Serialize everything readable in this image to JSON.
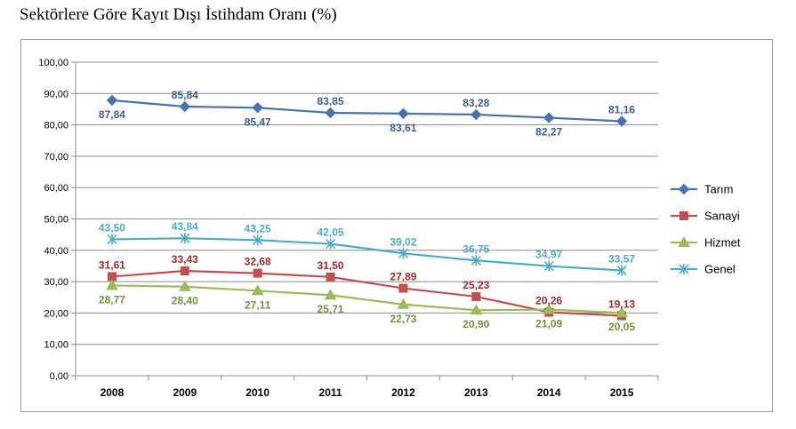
{
  "title": "Sektörlere Göre Kayıt Dışı İstihdam Oranı (%)",
  "chart_data": {
    "type": "line",
    "title": "Sektörlere Göre Kayıt Dışı İstihdam Oranı (%)",
    "categories": [
      "2008",
      "2009",
      "2010",
      "2011",
      "2012",
      "2013",
      "2014",
      "2015"
    ],
    "y_ticks": [
      "0,00",
      "10,00",
      "20,00",
      "30,00",
      "40,00",
      "50,00",
      "60,00",
      "70,00",
      "80,00",
      "90,00",
      "100,00"
    ],
    "ylim": [
      0,
      100
    ],
    "grid": "horizontal",
    "legend_position": "right",
    "series": [
      {
        "name": "Tarım",
        "color": "#4a72b0",
        "marker": "diamond",
        "label_color": "#3f5f8e",
        "values": [
          87.84,
          85.84,
          85.47,
          83.85,
          83.61,
          83.28,
          82.27,
          81.16
        ],
        "labels": [
          "87,84",
          "85,84",
          "85,47",
          "83,85",
          "83,61",
          "83,28",
          "82,27",
          "81,16"
        ],
        "label_side": [
          "below",
          "above",
          "below",
          "above",
          "below",
          "above",
          "below",
          "above"
        ]
      },
      {
        "name": "Sanayi",
        "color": "#c0504d",
        "marker": "square",
        "label_color": "#a52a2a",
        "values": [
          31.61,
          33.43,
          32.68,
          31.5,
          27.89,
          25.23,
          20.26,
          19.13
        ],
        "labels": [
          "31,61",
          "33,43",
          "32,68",
          "31,50",
          "27,89",
          "25,23",
          "20,26",
          "19,13"
        ],
        "label_side": [
          "above",
          "above",
          "above",
          "above",
          "above",
          "above",
          "above",
          "above"
        ]
      },
      {
        "name": "Hizmet",
        "color": "#9bbb59",
        "marker": "triangle",
        "label_color": "#76923c",
        "values": [
          28.77,
          28.4,
          27.11,
          25.71,
          22.73,
          20.9,
          21.09,
          20.05
        ],
        "labels": [
          "28,77",
          "28,40",
          "27,11",
          "25,71",
          "22,73",
          "20,90",
          "21,09",
          "20,05"
        ],
        "label_side": [
          "below",
          "below",
          "below",
          "below",
          "below",
          "below",
          "below",
          "below"
        ]
      },
      {
        "name": "Genel",
        "color": "#4bacc6",
        "marker": "star",
        "label_color": "#4bacc6",
        "values": [
          43.5,
          43.84,
          43.25,
          42.05,
          39.02,
          36.75,
          34.97,
          33.57
        ],
        "labels": [
          "43,50",
          "43,84",
          "43,25",
          "42,05",
          "39,02",
          "36,75",
          "34,97",
          "33,57"
        ],
        "label_side": [
          "above",
          "above",
          "above",
          "above",
          "above",
          "above",
          "above",
          "above"
        ]
      }
    ]
  }
}
